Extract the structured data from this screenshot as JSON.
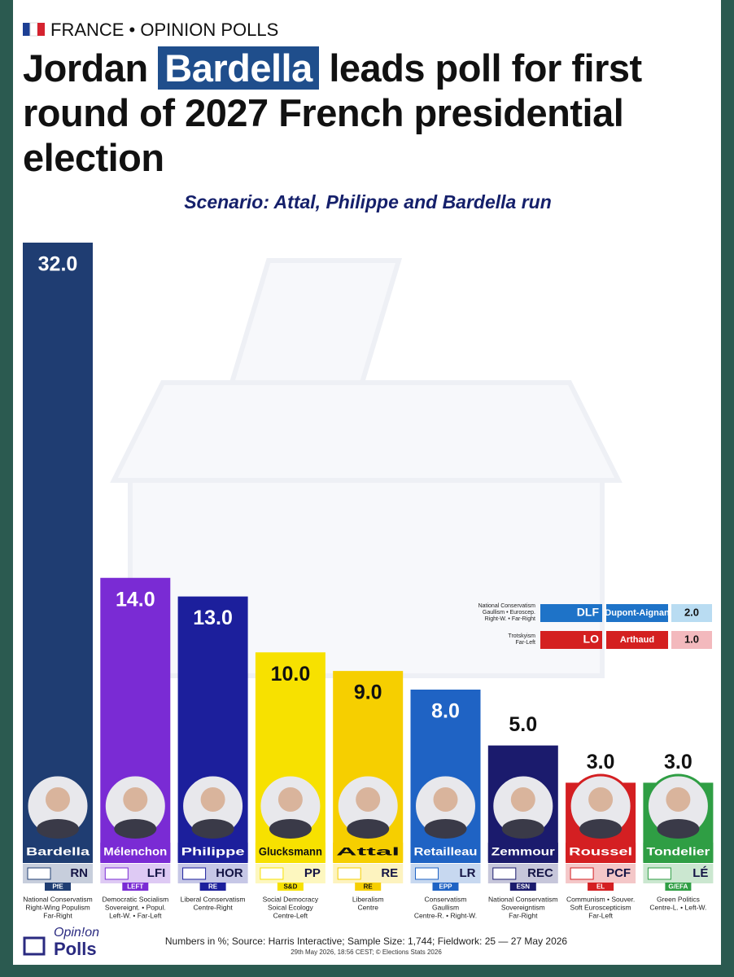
{
  "header": {
    "kicker": "FRANCE • OPINION POLLS",
    "title": [
      "Jordan",
      "Bardella",
      "leads poll for first round of 2027 French presidential election"
    ]
  },
  "chart_data": {
    "type": "bar",
    "subtitle": "Scenario: Attal, Philippe and Bardella run",
    "categories": [
      "Bardella",
      "Mélenchon",
      "Philippe",
      "Glucksmann",
      "Attal",
      "Retailleau",
      "Zemmour",
      "Roussel",
      "Tondelier"
    ],
    "values": [
      32,
      14,
      13,
      10,
      9,
      8,
      5,
      3,
      3
    ],
    "value_labels": [
      "32.0",
      "14.0",
      "13.0",
      "10.0",
      "9.0",
      "8.0",
      "5.0",
      "3.0",
      "3.0"
    ],
    "colors": [
      "#1f3d72",
      "#7a2bd4",
      "#1c1f9c",
      "#f7e100",
      "#f6cf00",
      "#1f63c4",
      "#1b1b6d",
      "#d41f22",
      "#2f9e44"
    ],
    "parties": [
      "RN",
      "LFI",
      "HOR",
      "PP",
      "RE",
      "LR",
      "REC",
      "PCF",
      "LÉ"
    ],
    "groups": [
      "PfE",
      "LEFT",
      "RE",
      "S&D",
      "RE",
      "EPP",
      "ESN",
      "EL",
      "G/EFA"
    ],
    "ideologies": [
      [
        "National Conservatism",
        "Right-Wing Populism",
        "Far-Right"
      ],
      [
        "Democratic Socialism",
        "Sovereignt. • Popul.",
        "Left-W. • Far-Left"
      ],
      [
        "Liberal Conservatism",
        "Centre-Right"
      ],
      [
        "Social Democracy",
        "Soical Ecology",
        "Centre-Left"
      ],
      [
        "Liberalism",
        "Centre"
      ],
      [
        "Conservatism",
        "Gaullism",
        "Centre-R. • Right-W."
      ],
      [
        "National Conservatism",
        "Sovereigntism",
        "Far-Right"
      ],
      [
        "Communism • Souver.",
        "Soft Euroscepticism",
        "Far-Left"
      ],
      [
        "Green Politics",
        "Centre-L. • Left-W."
      ]
    ],
    "ylim": [
      0,
      32
    ],
    "others": [
      {
        "ideology": [
          "National Conservatism",
          "Gaullism • Euroscep.",
          "Right-W. • Far-Right"
        ],
        "party": "DLF",
        "name": "Dupont-Aignan",
        "value": 2,
        "value_label": "2.0",
        "color": "#1e73c8",
        "light": "#b9dcf2"
      },
      {
        "ideology": [
          "Trotskyism",
          "Far-Left"
        ],
        "party": "LO",
        "name": "Arthaud",
        "value": 1,
        "value_label": "1.0",
        "color": "#d42020",
        "light": "#f3b9bd"
      }
    ]
  },
  "footer": {
    "source": "Numbers in %; Source: Harris Interactive; Sample Size: 1,744; Fieldwork: 25 — 27 May 2026",
    "date": "29th May 2026, 18:56 CEST; © Elections Stats 2026",
    "logo": [
      "Opin!on",
      "Polls"
    ]
  }
}
